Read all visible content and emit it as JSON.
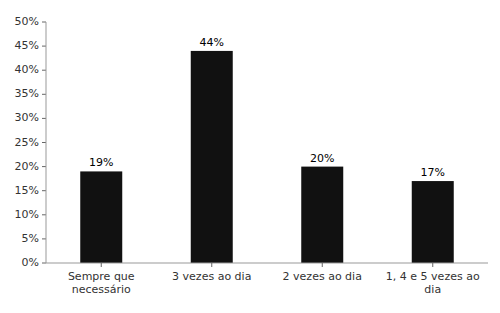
{
  "chart_data": {
    "type": "bar",
    "categories": [
      "Sempre que\nnecessário",
      "3 vezes ao dia",
      "2 vezes ao dia",
      "1, 4 e 5 vezes ao\ndia"
    ],
    "values": [
      19,
      44,
      20,
      17
    ],
    "value_labels": [
      "19%",
      "44%",
      "20%",
      "17%"
    ],
    "data_labels": true,
    "color": "#111111",
    "ylim": [
      0,
      50
    ],
    "yticks": [
      {
        "value": 0,
        "label": "0%"
      },
      {
        "value": 5,
        "label": "5%"
      },
      {
        "value": 10,
        "label": "10%"
      },
      {
        "value": 15,
        "label": "15%"
      },
      {
        "value": 20,
        "label": "20%"
      },
      {
        "value": 25,
        "label": "25%"
      },
      {
        "value": 30,
        "label": "30%"
      },
      {
        "value": 35,
        "label": "35%"
      },
      {
        "value": 40,
        "label": "40%"
      },
      {
        "value": 45,
        "label": "45%"
      },
      {
        "value": 50,
        "label": "50%"
      }
    ],
    "grid": false
  }
}
